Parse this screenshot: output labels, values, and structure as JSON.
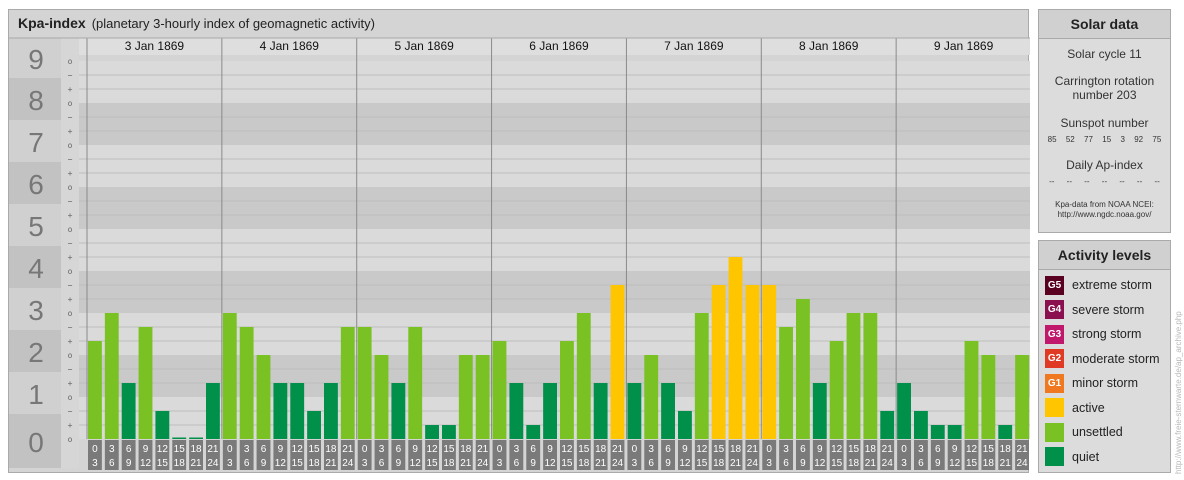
{
  "header": {
    "title": "Kpa-index",
    "subtitle": "(planetary 3-hourly index of geomagnetic activity)"
  },
  "chart_data": {
    "type": "bar",
    "ylim": [
      0,
      9
    ],
    "y_ticks": [
      "0",
      "1",
      "2",
      "3",
      "4",
      "5",
      "6",
      "7",
      "8",
      "9"
    ],
    "minor_tick_labels": [
      "o",
      "+",
      "−"
    ],
    "days": [
      "3 Jan 1869",
      "4 Jan 1869",
      "5 Jan 1869",
      "6 Jan 1869",
      "7 Jan 1869",
      "8 Jan 1869",
      "9 Jan 1869"
    ],
    "interval_labels": [
      [
        "0",
        "3"
      ],
      [
        "3",
        "6"
      ],
      [
        "6",
        "9"
      ],
      [
        "9",
        "12"
      ],
      [
        "12",
        "15"
      ],
      [
        "15",
        "18"
      ],
      [
        "18",
        "21"
      ],
      [
        "21",
        "24"
      ]
    ],
    "values": [
      2.333,
      3,
      1.333,
      2.667,
      0.667,
      0,
      0,
      1.333,
      3,
      2.667,
      2,
      1.333,
      1.333,
      0.667,
      1.333,
      2.667,
      2.667,
      2,
      1.333,
      2.667,
      0.333,
      0.333,
      2,
      2,
      2.333,
      1.333,
      0.333,
      1.333,
      2.333,
      3,
      1.333,
      3.667,
      1.333,
      2,
      1.333,
      0.667,
      3,
      3.667,
      4.333,
      3.667,
      3.667,
      2.667,
      3.333,
      1.333,
      2.333,
      3,
      3,
      0.667,
      1.333,
      0.667,
      0.333,
      0.333,
      2.333,
      2,
      0.333,
      2
    ],
    "colors": {
      "quiet": "#00904a",
      "unsettled": "#7ac224",
      "active": "#ffc600"
    }
  },
  "solar": {
    "heading": "Solar data",
    "cycle": "Solar cycle 11",
    "rotation": "Carrington rotation number 203",
    "sunspot_heading": "Sunspot number",
    "sunspot_values": [
      "85",
      "52",
      "77",
      "15",
      "3",
      "92",
      "75"
    ],
    "ap_heading": "Daily Ap-index",
    "ap_values": [
      "--",
      "--",
      "--",
      "--",
      "--",
      "--",
      "--"
    ],
    "source": "Kpa-data from NOAA NCEI:",
    "source_url": "http://www.ngdc.noaa.gov/"
  },
  "activity": {
    "heading": "Activity levels",
    "levels": [
      {
        "badge": "G5",
        "label": "extreme storm",
        "color": "#5a0020"
      },
      {
        "badge": "G4",
        "label": "severe storm",
        "color": "#8b1050"
      },
      {
        "badge": "G3",
        "label": "strong storm",
        "color": "#c0186a"
      },
      {
        "badge": "G2",
        "label": "moderate storm",
        "color": "#e03a24"
      },
      {
        "badge": "G1",
        "label": "minor storm",
        "color": "#f07820"
      },
      {
        "badge": "",
        "label": "active",
        "color": "#ffc600"
      },
      {
        "badge": "",
        "label": "unsettled",
        "color": "#7ac224"
      },
      {
        "badge": "",
        "label": "quiet",
        "color": "#00904a"
      }
    ]
  },
  "watermark": "http://www.freie-sternwarte.de/ap_archive.php"
}
